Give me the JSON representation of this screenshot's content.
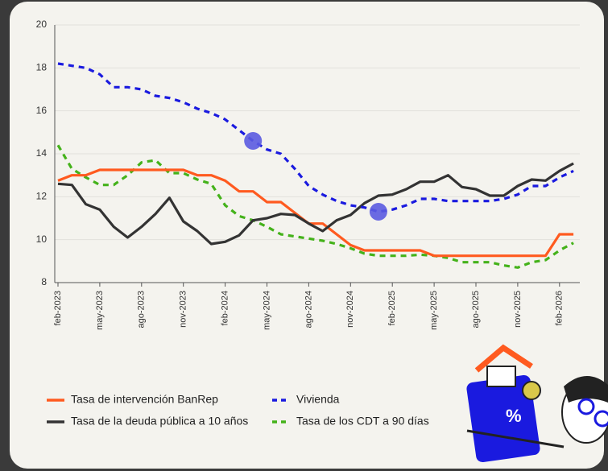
{
  "chart_data": {
    "type": "line",
    "categories": [
      "feb-2023",
      null,
      null,
      "may-2023",
      null,
      null,
      "ago-2023",
      null,
      null,
      "nov-2023",
      null,
      null,
      "feb-2024",
      null,
      null,
      "may-2024",
      null,
      null,
      "ago-2024",
      null,
      null,
      "nov-2024",
      null,
      null,
      "feb-2025",
      null,
      null,
      "may-2025",
      null,
      null,
      "ago-2025",
      null,
      null,
      "nov-2025",
      null,
      null,
      "feb-2026",
      null
    ],
    "series": [
      {
        "name": "Tasa de intervención BanRep",
        "color": "#ff5a1f",
        "style": "solid",
        "values": [
          12.75,
          13,
          13,
          13.25,
          13.25,
          13.25,
          13.25,
          13.25,
          13.25,
          13.25,
          13,
          13,
          12.75,
          12.25,
          12.25,
          11.75,
          11.75,
          11.25,
          10.75,
          10.75,
          10.25,
          9.75,
          9.5,
          9.5,
          9.5,
          9.5,
          9.5,
          9.25,
          9.25,
          9.25,
          9.25,
          9.25,
          9.25,
          9.25,
          9.25,
          9.25,
          10.25,
          10.25
        ]
      },
      {
        "name": "Vivienda",
        "color": "#1a1adf",
        "style": "dashed",
        "highlight": [
          14,
          23
        ],
        "values": [
          18.2,
          18.1,
          18.0,
          17.7,
          17.1,
          17.1,
          17.0,
          16.7,
          16.6,
          16.4,
          16.1,
          15.9,
          15.6,
          15.1,
          14.6,
          14.2,
          14.0,
          13.3,
          12.5,
          12.1,
          11.8,
          11.6,
          11.5,
          11.3,
          11.4,
          11.6,
          11.9,
          11.9,
          11.8,
          11.8,
          11.8,
          11.8,
          11.9,
          12.1,
          12.5,
          12.5,
          12.9,
          13.2
        ]
      },
      {
        "name": "Tasa de la deuda pública a 10 años",
        "color": "#333333",
        "style": "solid",
        "values": [
          12.6,
          12.55,
          11.65,
          11.4,
          10.6,
          10.1,
          10.6,
          11.2,
          11.95,
          10.85,
          10.4,
          9.8,
          9.9,
          10.2,
          10.9,
          11.0,
          11.2,
          11.15,
          10.75,
          10.4,
          10.9,
          11.15,
          11.7,
          12.05,
          12.1,
          12.35,
          12.7,
          12.7,
          13.0,
          12.45,
          12.35,
          12.05,
          12.05,
          12.5,
          12.8,
          12.75,
          13.2,
          13.55
        ]
      },
      {
        "name": "Tasa de los CDT a 90 días",
        "color": "#44b21a",
        "style": "dashed",
        "values": [
          14.4,
          13.3,
          12.9,
          12.55,
          12.55,
          13.0,
          13.6,
          13.7,
          13.1,
          13.1,
          12.8,
          12.6,
          11.6,
          11.1,
          10.9,
          10.6,
          10.25,
          10.15,
          10.05,
          9.95,
          9.8,
          9.6,
          9.35,
          9.25,
          9.25,
          9.25,
          9.3,
          9.25,
          9.15,
          8.95,
          8.95,
          8.95,
          8.8,
          8.7,
          8.95,
          9.05,
          9.5,
          9.85
        ]
      }
    ],
    "ylim": [
      8,
      20
    ],
    "yticks": [
      8,
      10,
      12,
      14,
      16,
      18,
      20
    ],
    "grid": true
  }
}
